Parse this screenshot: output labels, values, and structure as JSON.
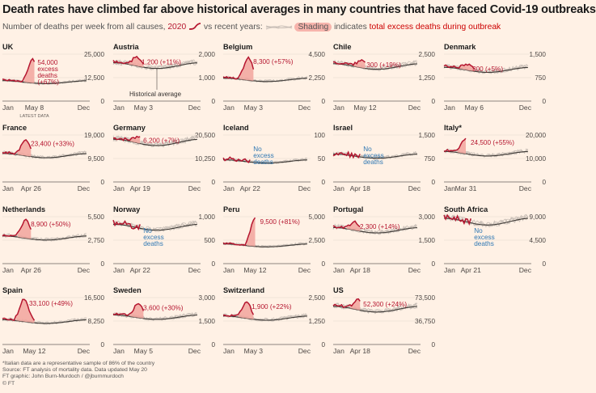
{
  "title": "Death rates have climbed far above historical averages in many countries that have faced Covid-19 outbreaks",
  "subtitle": {
    "prefix": "Number of deaths per week from all causes,",
    "year": "2020",
    "middle": "vs recent years:",
    "shading_word": "Shading",
    "shading_rest": "indicates",
    "total_text": "total excess deaths during outbreak"
  },
  "colors": {
    "background": "#fff1e5",
    "line2020": "#b5162f",
    "historical": "#3d3935",
    "recent_years": "#c9bfb7",
    "shading": "#f2a59e",
    "no_excess_text": "#2f78b3",
    "excess_text": "#b5162f"
  },
  "chart_data": [
    {
      "type": "line",
      "title": "UK",
      "x_labels": [
        "Jan",
        "May 8",
        "Dec"
      ],
      "x_sub": "LATEST DATA",
      "y_ticks": [
        "25,000",
        "12,500",
        "0"
      ],
      "ylim": [
        0,
        25000
      ],
      "peak_week": 18,
      "peak": 22300,
      "baseline": 10400,
      "annotation": "54,000 excess deaths (+67%)",
      "end_week": 19,
      "hist_label": ""
    },
    {
      "type": "line",
      "title": "Austria",
      "x_labels": [
        "Jan",
        "May 3",
        "Dec"
      ],
      "y_ticks": [
        "2,000",
        "1,000",
        "0"
      ],
      "ylim": [
        0,
        2000
      ],
      "peak_week": 14,
      "peak": 1850,
      "baseline": 1560,
      "annotation": "1,200 (+11%)",
      "end_week": 18,
      "hist_label": "Historical average"
    },
    {
      "type": "line",
      "title": "Belgium",
      "x_labels": [
        "Jan",
        "May 3",
        "Dec"
      ],
      "y_ticks": [
        "4,500",
        "2,250",
        "0"
      ],
      "ylim": [
        0,
        4500
      ],
      "peak_week": 15,
      "peak": 4200,
      "baseline": 2100,
      "annotation": "8,300 (+57%)",
      "end_week": 18,
      "hist_label": ""
    },
    {
      "type": "line",
      "title": "Chile",
      "x_labels": [
        "Jan",
        "May 12",
        "Dec"
      ],
      "y_ticks": [
        "2,500",
        "1,250",
        "0"
      ],
      "ylim": [
        0,
        2500
      ],
      "peak_week": 17,
      "peak": 2150,
      "baseline": 1900,
      "annotation": "300 (+19%)",
      "end_week": 19,
      "hist_label": ""
    },
    {
      "type": "line",
      "title": "Denmark",
      "x_labels": [
        "Jan",
        "May 6",
        "Dec"
      ],
      "y_ticks": [
        "1,500",
        "750",
        "0"
      ],
      "ylim": [
        0,
        1500
      ],
      "peak_week": 14,
      "peak": 1170,
      "baseline": 1030,
      "annotation": "300 (+5%)",
      "end_week": 18,
      "hist_label": ""
    },
    {
      "type": "line",
      "title": "France",
      "x_labels": [
        "Jan",
        "Apr 26",
        "Dec"
      ],
      "y_ticks": [
        "19,000",
        "9,500",
        "0"
      ],
      "ylim": [
        0,
        19000
      ],
      "peak_week": 14,
      "peak": 17200,
      "baseline": 11000,
      "annotation": "23,400 (+33%)",
      "end_week": 17,
      "hist_label": ""
    },
    {
      "type": "line",
      "title": "Germany",
      "x_labels": [
        "Jan",
        "Apr 19",
        "Dec"
      ],
      "y_ticks": [
        "20,500",
        "10,250",
        "0"
      ],
      "ylim": [
        0,
        20500
      ],
      "peak_week": 15,
      "peak": 20000,
      "baseline": 17800,
      "annotation": "6,200 (+7%)",
      "end_week": 16,
      "hist_label": ""
    },
    {
      "type": "line",
      "title": "Iceland",
      "x_labels": [
        "Jan",
        "Apr 22",
        "Dec"
      ],
      "y_ticks": [
        "100",
        "50",
        "0"
      ],
      "ylim": [
        0,
        100
      ],
      "peak_week": 0,
      "peak": 0,
      "baseline": 45,
      "annotation": "No excess deaths",
      "end_week": 16,
      "hist_label": ""
    },
    {
      "type": "line",
      "title": "Israel",
      "x_labels": [
        "Jan",
        "Apr 18",
        "Dec"
      ],
      "y_ticks": [
        "1,500",
        "750",
        "0"
      ],
      "ylim": [
        0,
        1500
      ],
      "peak_week": 0,
      "peak": 0,
      "baseline": 850,
      "annotation": "No excess deaths",
      "end_week": 16,
      "hist_label": ""
    },
    {
      "type": "line",
      "title": "Italy*",
      "x_labels": [
        "Jan",
        "Mar 31",
        "Dec"
      ],
      "y_ticks": [
        "20,000",
        "10,000",
        "0"
      ],
      "ylim": [
        0,
        20000
      ],
      "peak_week": 13,
      "peak": 18600,
      "baseline": 12400,
      "annotation": "24,500 (+55%)",
      "end_week": 13,
      "hist_label": ""
    },
    {
      "type": "line",
      "title": "Netherlands",
      "x_labels": [
        "Jan",
        "Apr 26",
        "Dec"
      ],
      "y_ticks": [
        "5,500",
        "2,750",
        "0"
      ],
      "ylim": [
        0,
        5500
      ],
      "peak_week": 14,
      "peak": 5100,
      "baseline": 3100,
      "annotation": "8,900 (+50%)",
      "end_week": 17,
      "hist_label": ""
    },
    {
      "type": "line",
      "title": "Norway",
      "x_labels": [
        "Jan",
        "Apr 22",
        "Dec"
      ],
      "y_ticks": [
        "1,000",
        "500",
        "0"
      ],
      "ylim": [
        0,
        1000
      ],
      "peak_week": 0,
      "peak": 0,
      "baseline": 800,
      "annotation": "No excess deaths",
      "end_week": 16,
      "hist_label": ""
    },
    {
      "type": "line",
      "title": "Peru",
      "x_labels": [
        "Jan",
        "May 12",
        "Dec"
      ],
      "y_ticks": [
        "5,000",
        "2,500",
        "0"
      ],
      "ylim": [
        0,
        5000
      ],
      "peak_week": 19,
      "peak": 4900,
      "baseline": 2000,
      "annotation": "9,500 (+81%)",
      "end_week": 19,
      "hist_label": ""
    },
    {
      "type": "line",
      "title": "Portugal",
      "x_labels": [
        "Jan",
        "Apr 18",
        "Dec"
      ],
      "y_ticks": [
        "3,000",
        "1,500",
        "0"
      ],
      "ylim": [
        0,
        3000
      ],
      "peak_week": 13,
      "peak": 2650,
      "baseline": 2200,
      "annotation": "2,300 (+14%)",
      "end_week": 16,
      "hist_label": ""
    },
    {
      "type": "line",
      "title": "South Africa",
      "x_labels": [
        "Jan",
        "Apr 21",
        "Dec"
      ],
      "y_ticks": [
        "9,000",
        "4,500",
        "0"
      ],
      "ylim": [
        0,
        9000
      ],
      "peak_week": 0,
      "peak": 0,
      "baseline": 8300,
      "annotation": "No excess deaths",
      "end_week": 16,
      "hist_label": ""
    },
    {
      "type": "line",
      "title": "Spain",
      "x_labels": [
        "Jan",
        "May 12",
        "Dec"
      ],
      "y_ticks": [
        "16,500",
        "8,250",
        "0"
      ],
      "ylim": [
        0,
        16500
      ],
      "peak_week": 13,
      "peak": 16000,
      "baseline": 8300,
      "annotation": "33,100 (+49%)",
      "end_week": 19,
      "hist_label": ""
    },
    {
      "type": "line",
      "title": "Sweden",
      "x_labels": [
        "Jan",
        "May 5",
        "Dec"
      ],
      "y_ticks": [
        "3,000",
        "1,500",
        "0"
      ],
      "ylim": [
        0,
        3000
      ],
      "peak_week": 15,
      "peak": 2600,
      "baseline": 1800,
      "annotation": "3,600 (+30%)",
      "end_week": 18,
      "hist_label": ""
    },
    {
      "type": "line",
      "title": "Switzerland",
      "x_labels": [
        "Jan",
        "May 3",
        "Dec"
      ],
      "y_ticks": [
        "2,500",
        "1,250",
        "0"
      ],
      "ylim": [
        0,
        2500
      ],
      "peak_week": 14,
      "peak": 2250,
      "baseline": 1450,
      "annotation": "1,900 (+22%)",
      "end_week": 18,
      "hist_label": ""
    },
    {
      "type": "line",
      "title": "US",
      "x_labels": [
        "Jan",
        "Apr 18",
        "Dec"
      ],
      "y_ticks": [
        "73,500",
        "36,750",
        "0"
      ],
      "ylim": [
        0,
        73500
      ],
      "peak_week": 15,
      "peak": 70000,
      "baseline": 57000,
      "annotation": "52,300 (+24%)",
      "end_week": 16,
      "hist_label": ""
    }
  ],
  "footer": [
    "*Italian data are a representative sample of 86% of the country",
    "Source: FT analysis of mortality data. Data updated May 20",
    "FT graphic: John Burn-Murdoch / @jburnmurdoch",
    "© FT"
  ]
}
